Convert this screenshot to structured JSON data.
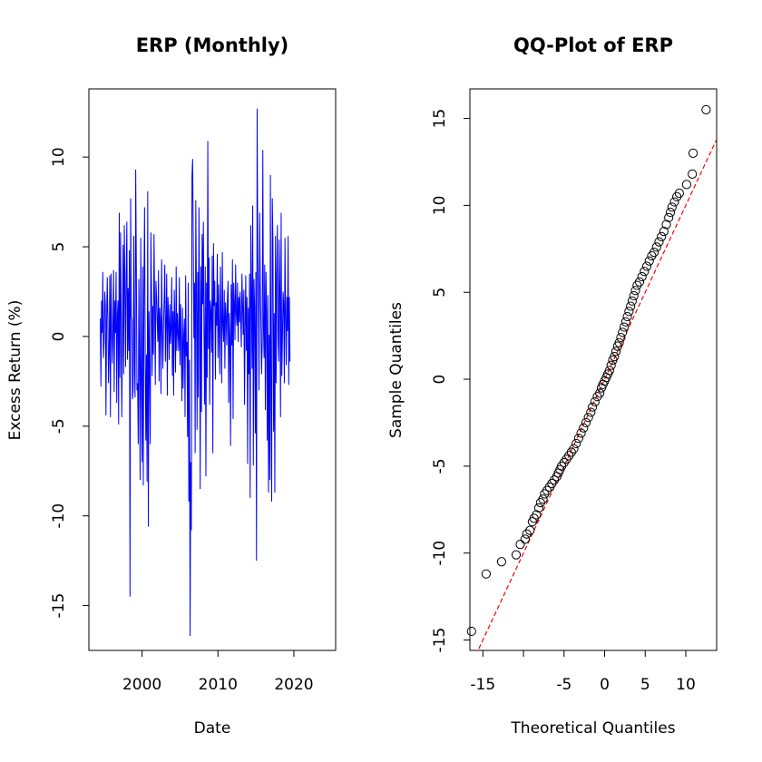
{
  "chart_data": [
    {
      "type": "line",
      "title": "ERP (Monthly)",
      "xlabel": "Date",
      "ylabel": "Excess Return (%)",
      "x_ticks": [
        2000,
        2010,
        2020
      ],
      "y_ticks": [
        -15,
        -10,
        -5,
        0,
        5,
        10
      ],
      "xlim": [
        1993.0,
        2025.5
      ],
      "ylim": [
        -17.5,
        13.8
      ],
      "color": "#0000ff",
      "series": [
        {
          "x_start": 1994.5,
          "x_step": 0.0833,
          "values": [
            1.0,
            -2.8,
            2.0,
            0.2,
            3.6,
            -1.2,
            -0.3,
            2.5,
            1.8,
            -4.4,
            0.8,
            3.3,
            0.9,
            -2.6,
            -1.0,
            3.4,
            -4.5,
            3.5,
            0.6,
            -1.5,
            0.5,
            3.7,
            -3.1,
            2.0,
            0.2,
            3.6,
            -3.7,
            1.2,
            2.0,
            -4.9,
            6.9,
            -2.3,
            5.8,
            1.1,
            -4.5,
            0.2,
            5.1,
            -2.1,
            6.2,
            2.9,
            -1.7,
            3.5,
            6.4,
            -1.3,
            2.7,
            -0.8,
            4.8,
            -14.5,
            7.7,
            1.1,
            0.9,
            -3.5,
            -3.0,
            5.6,
            -1.3,
            -3.4,
            9.3,
            4.0,
            -3.0,
            -2.6,
            -6.0,
            3.2,
            -1.9,
            -8.0,
            5.5,
            -2.6,
            -7.0,
            3.9,
            -8.3,
            2.6,
            7.2,
            -1.0,
            -5.8,
            -1.0,
            -8.1,
            8.1,
            -10.6,
            1.4,
            -1.7,
            -6.0,
            5.8,
            2.6,
            -2.2,
            1.7,
            -1.0,
            5.7,
            1.8,
            -2.7,
            3.1,
            2.2,
            0.8,
            -0.3,
            3.7,
            -2.5,
            1.6,
            0.9,
            -3.2,
            4.3,
            0.5,
            -1.8,
            0.7,
            2.0,
            4.0,
            -1.4,
            0.8,
            3.5,
            -3.3,
            2.2,
            1.0,
            -1.3,
            1.8,
            -0.4,
            0.4,
            3.3,
            -2.2,
            1.4,
            -3.3,
            2.6,
            0.8,
            -2.0,
            3.9,
            -0.8,
            1.3,
            0.2,
            -0.8,
            3.3,
            -1.6,
            1.8,
            -0.3,
            -3.6,
            1.6,
            -2.9,
            0.1,
            1.0,
            -4.5,
            3.4,
            -1.1,
            -0.3,
            -5.6,
            3.0,
            -9.2,
            -1.3,
            -16.7,
            -7.0,
            -10.8,
            8.9,
            9.9,
            5.6,
            -0.1,
            3.0,
            -6.5,
            7.6,
            2.5,
            -5.2,
            3.6,
            -3.4,
            7.2,
            1.5,
            -8.5,
            3.9,
            -4.2,
            5.7,
            1.8,
            6.4,
            0.1,
            -3.8,
            3.9,
            -7.8,
            3.0,
            -2.3,
            10.9,
            -0.7,
            4.4,
            -3.8,
            2.0,
            1.4,
            -0.9,
            4.5,
            -6.5,
            5.2,
            1.7,
            3.1,
            -2.4,
            1.9,
            0.6,
            4.6,
            -1.2,
            2.9,
            0.2,
            -2.1,
            3.9,
            1.1,
            -2.6,
            4.7,
            0.6,
            -0.3,
            2.6,
            -1.8,
            1.9,
            1.2,
            -0.5,
            2.0,
            3.1,
            -3.7,
            1.3,
            -0.1,
            -6.1,
            2.9,
            -0.5,
            4.3,
            -4.6,
            3.0,
            1.9,
            -0.2,
            4.0,
            1.3,
            0.6,
            3.0,
            -0.3,
            2.2,
            0.8,
            2.5,
            1.0,
            -0.6,
            3.5,
            1.8,
            0.1,
            2.6,
            -3.8,
            0.4,
            3.4,
            -0.8,
            2.2,
            -7.1,
            1.6,
            -2.1,
            3.5,
            -9.0,
            6.2,
            2.5,
            -1.8,
            7.3,
            -7.2,
            3.2,
            1.6,
            -5.4,
            3.6,
            -12.5,
            12.7,
            4.6,
            1.9,
            -3.0,
            6.9,
            2.9,
            0.7,
            -2.1,
            -0.5,
            10.4,
            0.5,
            -1.2,
            4.0,
            -4.1,
            3.6,
            1.3,
            -5.8,
            2.3,
            -8.7,
            0.1,
            -8.0,
            9.0,
            -3.8,
            -9.2,
            7.7,
            5.3,
            -5.3,
            1.3,
            -8.7,
            5.6,
            -2.6,
            3.4,
            6.2,
            -0.3,
            -1.4,
            5.4,
            2.5,
            -4.5,
            6.9,
            -2.2,
            -0.2,
            2.5,
            1.8,
            -2.6,
            5.5,
            1.2,
            -1.6,
            2.2,
            0.3,
            5.6,
            -2.7,
            2.2,
            -1.4
          ]
        }
      ]
    },
    {
      "type": "scatter",
      "title": "QQ-Plot of ERP",
      "xlabel": "Theoretical Quantiles",
      "ylabel": "Sample Quantiles",
      "x_ticks": [
        -15,
        -5,
        0,
        5,
        10
      ],
      "y_ticks": [
        -15,
        -10,
        -5,
        0,
        5,
        10,
        15
      ],
      "xlim": [
        -16.6,
        13.8
      ],
      "ylim": [
        -15.6,
        16.7
      ],
      "reference_line": {
        "x1": -15.5,
        "y1": -15.5,
        "x2": 13.8,
        "y2": 13.8,
        "color": "#ff0000",
        "style": "dashed"
      },
      "points": [
        [
          -16.4,
          -14.5
        ],
        [
          -14.6,
          -11.2
        ],
        [
          -12.7,
          -10.5
        ],
        [
          -10.9,
          -10.1
        ],
        [
          -10.4,
          -9.5
        ],
        [
          -9.8,
          -9.2
        ],
        [
          -9.6,
          -8.9
        ],
        [
          -9.2,
          -8.7
        ],
        [
          -8.9,
          -8.2
        ],
        [
          -8.7,
          -8.0
        ],
        [
          -8.4,
          -7.8
        ],
        [
          -8.1,
          -7.4
        ],
        [
          -7.9,
          -7.1
        ],
        [
          -7.6,
          -6.9
        ],
        [
          -7.4,
          -6.6
        ],
        [
          -7.1,
          -6.4
        ],
        [
          -6.8,
          -6.2
        ],
        [
          -6.5,
          -6.0
        ],
        [
          -6.2,
          -5.8
        ],
        [
          -5.9,
          -5.6
        ],
        [
          -5.7,
          -5.4
        ],
        [
          -5.5,
          -5.2
        ],
        [
          -5.3,
          -5.0
        ],
        [
          -5.0,
          -4.8
        ],
        [
          -4.7,
          -4.6
        ],
        [
          -4.4,
          -4.4
        ],
        [
          -4.1,
          -4.2
        ],
        [
          -3.8,
          -4.0
        ],
        [
          -3.5,
          -3.7
        ],
        [
          -3.2,
          -3.4
        ],
        [
          -2.9,
          -3.1
        ],
        [
          -2.6,
          -2.8
        ],
        [
          -2.3,
          -2.5
        ],
        [
          -2.0,
          -2.2
        ],
        [
          -1.7,
          -1.9
        ],
        [
          -1.5,
          -1.6
        ],
        [
          -1.2,
          -1.3
        ],
        [
          -0.9,
          -1.0
        ],
        [
          -0.6,
          -0.8
        ],
        [
          -0.4,
          -0.5
        ],
        [
          -0.2,
          -0.3
        ],
        [
          0.0,
          -0.1
        ],
        [
          0.2,
          0.1
        ],
        [
          0.4,
          0.3
        ],
        [
          0.6,
          0.5
        ],
        [
          0.8,
          0.8
        ],
        [
          1.0,
          1.1
        ],
        [
          1.2,
          1.3
        ],
        [
          1.4,
          1.6
        ],
        [
          1.6,
          1.9
        ],
        [
          1.8,
          2.1
        ],
        [
          2.0,
          2.4
        ],
        [
          2.2,
          2.7
        ],
        [
          2.4,
          3.0
        ],
        [
          2.6,
          3.3
        ],
        [
          2.8,
          3.6
        ],
        [
          3.0,
          3.9
        ],
        [
          3.2,
          4.2
        ],
        [
          3.4,
          4.5
        ],
        [
          3.6,
          4.8
        ],
        [
          3.8,
          5.1
        ],
        [
          4.0,
          5.4
        ],
        [
          4.3,
          5.6
        ],
        [
          4.6,
          5.9
        ],
        [
          4.9,
          6.2
        ],
        [
          5.2,
          6.5
        ],
        [
          5.5,
          6.8
        ],
        [
          5.8,
          7.1
        ],
        [
          6.1,
          7.3
        ],
        [
          6.4,
          7.6
        ],
        [
          6.7,
          7.9
        ],
        [
          7.0,
          8.2
        ],
        [
          7.3,
          8.5
        ],
        [
          7.6,
          8.9
        ],
        [
          7.9,
          9.3
        ],
        [
          8.1,
          9.6
        ],
        [
          8.3,
          9.9
        ],
        [
          8.6,
          10.2
        ],
        [
          8.9,
          10.5
        ],
        [
          9.2,
          10.7
        ],
        [
          10.1,
          11.2
        ],
        [
          10.8,
          11.8
        ],
        [
          10.9,
          13.0
        ],
        [
          12.5,
          15.5
        ]
      ]
    }
  ]
}
